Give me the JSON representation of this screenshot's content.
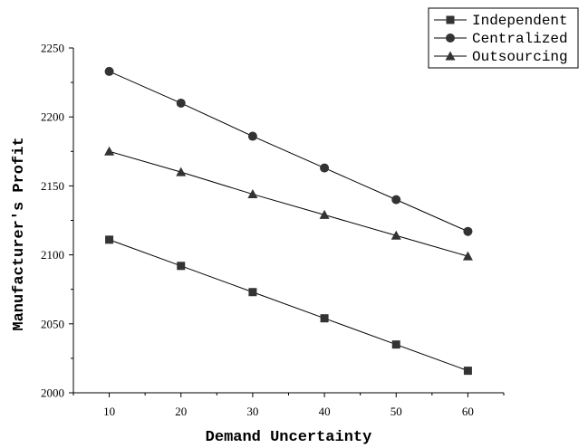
{
  "chart_data": {
    "type": "line",
    "xlabel": "Demand Uncertainty",
    "ylabel": "Manufacturer's Profit",
    "x": [
      10,
      20,
      30,
      40,
      50,
      60
    ],
    "xlim": [
      5,
      65
    ],
    "ylim": [
      2000,
      2250
    ],
    "xticks": [
      10,
      20,
      30,
      40,
      50,
      60
    ],
    "yticks": [
      2000,
      2050,
      2100,
      2150,
      2200,
      2250
    ],
    "grid": false,
    "legend_position": "top-right",
    "series": [
      {
        "name": "Independent",
        "marker": "square",
        "values": [
          2111,
          2092,
          2073,
          2054,
          2035,
          2016
        ]
      },
      {
        "name": "Centralized",
        "marker": "circle",
        "values": [
          2233,
          2210,
          2186,
          2163,
          2140,
          2117
        ]
      },
      {
        "name": "Outsourcing",
        "marker": "triangle",
        "values": [
          2175,
          2160,
          2144,
          2129,
          2114,
          2099
        ]
      }
    ],
    "colors": {
      "line": "#000000",
      "marker": "#333333"
    }
  }
}
